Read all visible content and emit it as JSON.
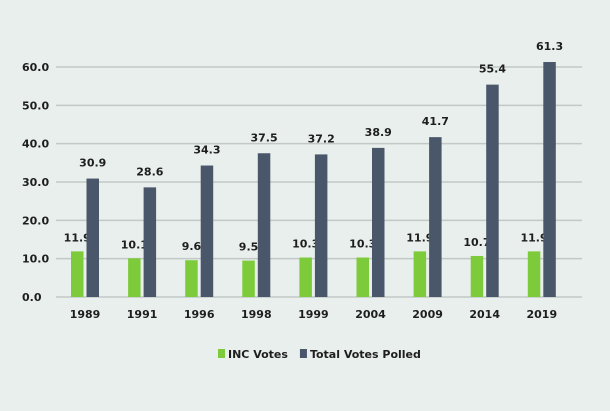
{
  "chart_data": {
    "type": "bar",
    "title": "",
    "xlabel": "",
    "ylabel": "",
    "categories": [
      "1989",
      "1991",
      "1996",
      "1998",
      "1999",
      "2004",
      "2009",
      "2014",
      "2019"
    ],
    "series": [
      {
        "name": "INC Votes",
        "color": "#7dcb3a",
        "values": [
          11.9,
          10.1,
          9.6,
          9.5,
          10.3,
          10.3,
          11.9,
          10.7,
          11.9
        ]
      },
      {
        "name": "Total Votes Polled",
        "color": "#4a576b",
        "values": [
          30.9,
          28.6,
          34.3,
          37.5,
          37.2,
          38.9,
          41.7,
          55.4,
          61.3
        ]
      }
    ],
    "ylim": [
      0,
      60
    ],
    "yticks": [
      "0.0",
      "10.0",
      "20.0",
      "30.0",
      "40.0",
      "50.0",
      "60.0"
    ],
    "grid": true,
    "legend": "bottom",
    "data_labels": true
  }
}
